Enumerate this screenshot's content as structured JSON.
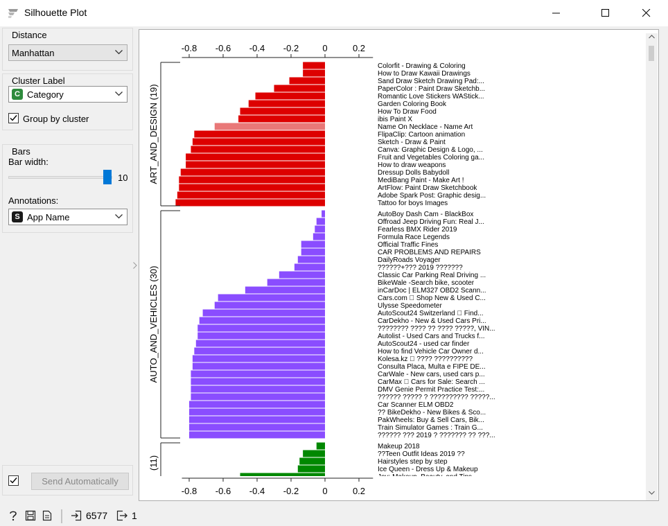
{
  "window": {
    "title": "Silhouette Plot"
  },
  "distance": {
    "title": "Distance",
    "selected": "Manhattan"
  },
  "cluster_label": {
    "title": "Cluster Label",
    "badge": "C",
    "badge_color": "#2e8b3d",
    "selected": "Category",
    "group_by_label": "Group by cluster",
    "group_by_checked": true
  },
  "bars": {
    "title": "Bars",
    "width_label": "Bar width:",
    "width_value": "10",
    "annotations_label": "Annotations:",
    "annotations_badge": "S",
    "annotations_badge_color": "#1a1a1a",
    "annotations_selected": "App Name"
  },
  "send": {
    "checked": true,
    "label": "Send Automatically"
  },
  "status": {
    "input_count": "6577",
    "output_count": "1"
  },
  "chart_data": {
    "type": "bar",
    "orientation": "horizontal",
    "xlim": [
      -0.9,
      0.25
    ],
    "ticks": [
      -0.8,
      -0.6,
      -0.4,
      -0.2,
      0,
      0.2
    ],
    "tick_labels": [
      "-0.8",
      "-0.6",
      "-0.4",
      "-0.2",
      "0",
      "0.2"
    ],
    "clusters": [
      {
        "label": "ART_AND_DESIGN (19)",
        "color": "#dd0000",
        "highlight_color": "#e97878",
        "items": [
          {
            "name": "Colorfit - Drawing & Coloring",
            "value": -0.13
          },
          {
            "name": "How to Draw Kawaii Drawings",
            "value": -0.13
          },
          {
            "name": "Sand Draw Sketch Drawing Pad:...",
            "value": -0.21
          },
          {
            "name": "PaperColor : Paint Draw Sketchb...",
            "value": -0.3
          },
          {
            "name": "Romantic Love Stickers WAStick...",
            "value": -0.41
          },
          {
            "name": "Garden Coloring Book",
            "value": -0.45
          },
          {
            "name": "How To Draw Food",
            "value": -0.5
          },
          {
            "name": "ibis Paint X",
            "value": -0.51
          },
          {
            "name": "Name On Necklace - Name Art",
            "value": -0.65,
            "highlight": true
          },
          {
            "name": "FlipaClip: Cartoon animation",
            "value": -0.77
          },
          {
            "name": "Sketch - Draw & Paint",
            "value": -0.78
          },
          {
            "name": "Canva: Graphic Design & Logo, ...",
            "value": -0.79
          },
          {
            "name": "Fruit and Vegetables Coloring ga...",
            "value": -0.82
          },
          {
            "name": "How to draw weapons",
            "value": -0.82
          },
          {
            "name": "Dressup Dolls Babydoll",
            "value": -0.85
          },
          {
            "name": "MediBang Paint - Make Art !",
            "value": -0.86
          },
          {
            "name": "ArtFlow: Paint Draw Sketchbook",
            "value": -0.86
          },
          {
            "name": "Adobe Spark Post: Graphic desig...",
            "value": -0.87
          },
          {
            "name": "Tattoo for boys Images",
            "value": -0.88
          }
        ]
      },
      {
        "label": "AUTO_AND_VEHICLES (30)",
        "color": "#8a4dff",
        "items": [
          {
            "name": "AutoBoy Dash Cam - BlackBox",
            "value": -0.02
          },
          {
            "name": "Offroad Jeep Driving Fun: Real J...",
            "value": -0.05
          },
          {
            "name": "Fearless BMX Rider 2019",
            "value": -0.06
          },
          {
            "name": "Formula Race Legends",
            "value": -0.07
          },
          {
            "name": "Official Traffic Fines",
            "value": -0.14
          },
          {
            "name": "CAR PROBLEMS AND REPAIRS",
            "value": -0.14
          },
          {
            "name": "DailyRoads Voyager",
            "value": -0.16
          },
          {
            "name": "??????+??? 2019 ???????",
            "value": -0.18
          },
          {
            "name": "Classic Car Parking Real Driving ...",
            "value": -0.27
          },
          {
            "name": "BikeWale -Search bike, scooter",
            "value": -0.34
          },
          {
            "name": "inCarDoc | ELM327 OBD2 Scann...",
            "value": -0.47
          },
          {
            "name": "Cars.com \u0000 Shop New & Used C...",
            "value": -0.63
          },
          {
            "name": "Ulysse Speedometer",
            "value": -0.65
          },
          {
            "name": "AutoScout24 Switzerland \u0000 Find...",
            "value": -0.72
          },
          {
            "name": "CarDekho - New & Used Cars Pri...",
            "value": -0.74
          },
          {
            "name": "???????? ???? ?? ???? ?????, VIN...",
            "value": -0.75
          },
          {
            "name": "Autolist - Used Cars and Trucks f...",
            "value": -0.75
          },
          {
            "name": "AutoScout24 - used car finder",
            "value": -0.76
          },
          {
            "name": "How to find Vehicle Car Owner d...",
            "value": -0.77
          },
          {
            "name": "Kolesa.kz \u0000 ???? ??????????",
            "value": -0.78
          },
          {
            "name": "Consulta Placa, Multa e FIPE DE...",
            "value": -0.78
          },
          {
            "name": "CarWale - New cars, used cars p...",
            "value": -0.79
          },
          {
            "name": "CarMax \u0000 Cars for Sale: Search ...",
            "value": -0.79
          },
          {
            "name": "DMV Genie Permit Practice Test:...",
            "value": -0.79
          },
          {
            "name": "?????? ????? ? ?????????? ?????...",
            "value": -0.79
          },
          {
            "name": "Car Scanner ELM OBD2",
            "value": -0.8
          },
          {
            "name": "?? BikeDekho - New Bikes & Sco...",
            "value": -0.8
          },
          {
            "name": "PakWheels: Buy & Sell Cars, Bik...",
            "value": -0.8
          },
          {
            "name": "Train Simulator Games : Train G...",
            "value": -0.8
          },
          {
            "name": "?????? ??? 2019 ? ??????? ?? ???...",
            "value": -0.8
          }
        ]
      },
      {
        "label": "(11)",
        "color": "#008800",
        "items": [
          {
            "name": "Makeup 2018",
            "value": -0.05
          },
          {
            "name": "??Teen Outfit Ideas 2019 ??",
            "value": -0.13
          },
          {
            "name": "Hairstyles step by step",
            "value": -0.15
          },
          {
            "name": "Ice Queen - Dress Up & Makeup",
            "value": -0.16
          },
          {
            "name": "Joy: Makeup, Beauty, and Tips",
            "value": -0.5
          }
        ]
      }
    ]
  }
}
